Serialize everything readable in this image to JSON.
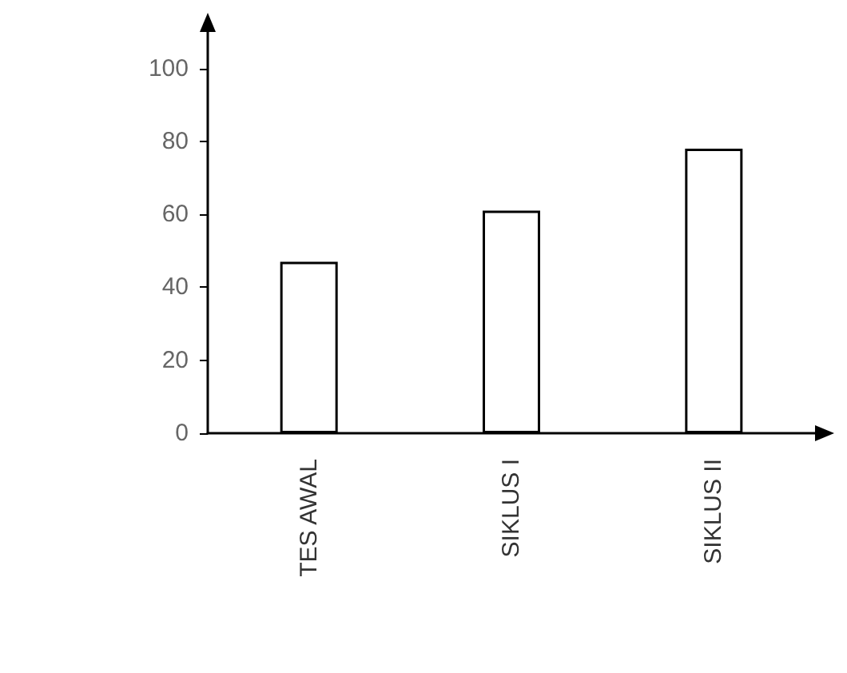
{
  "chart_data": {
    "type": "bar",
    "categories": [
      "TES AWAL",
      "SIKLUS I",
      "SIKLUS II"
    ],
    "values": [
      47,
      61,
      78
    ],
    "color": "#ffffff",
    "ylim": [
      0,
      110
    ],
    "yticks": [
      0,
      20,
      40,
      60,
      80,
      100
    ],
    "grid": false
  }
}
